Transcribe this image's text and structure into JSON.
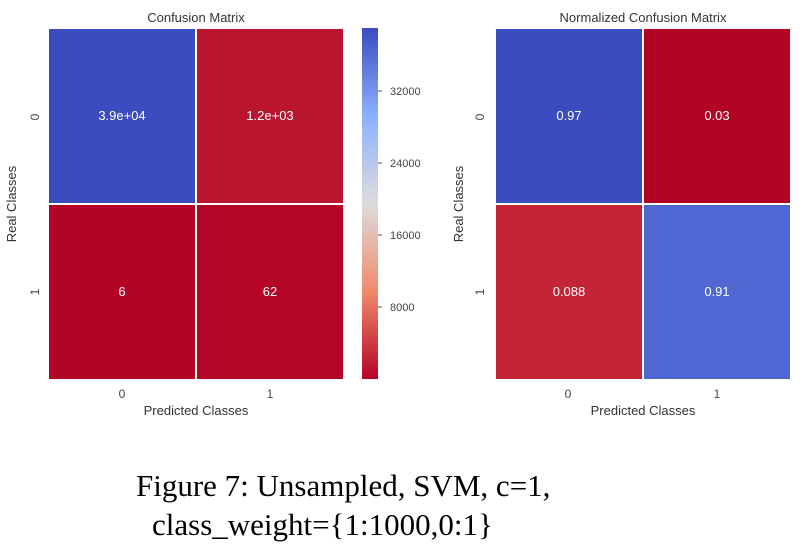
{
  "chart_data": [
    {
      "type": "heatmap",
      "title": "Confusion Matrix",
      "xlabel": "Predicted Classes",
      "ylabel": "Real Classes",
      "x_categories": [
        "0",
        "1"
      ],
      "y_categories": [
        "0",
        "1"
      ],
      "values": [
        [
          39000,
          1200
        ],
        [
          6,
          62
        ]
      ],
      "annotations": [
        [
          "3.9e+04",
          "1.2e+03"
        ],
        [
          "6",
          "62"
        ]
      ],
      "colormap": "coolwarm_r",
      "colorbar": {
        "ticks": [
          32000,
          24000,
          16000,
          8000
        ],
        "range": [
          0,
          39000
        ]
      },
      "colors": {
        "high": "#3b4cc0",
        "mid": "#dddcdc",
        "low": "#b40426"
      }
    },
    {
      "type": "heatmap",
      "title": "Normalized Confusion Matrix",
      "xlabel": "Predicted Classes",
      "ylabel": "Real Classes",
      "x_categories": [
        "0",
        "1"
      ],
      "y_categories": [
        "0",
        "1"
      ],
      "values": [
        [
          0.97,
          0.03
        ],
        [
          0.088,
          0.91
        ]
      ],
      "annotations": [
        [
          "0.97",
          "0.03"
        ],
        [
          "0.088",
          "0.91"
        ]
      ],
      "colormap": "coolwarm_r",
      "range": [
        0.03,
        0.97
      ]
    }
  ],
  "caption": {
    "line1": "Figure 7: Unsampled, SVM, c=1,",
    "line2": "class_weight={1:1000,0:1}"
  }
}
